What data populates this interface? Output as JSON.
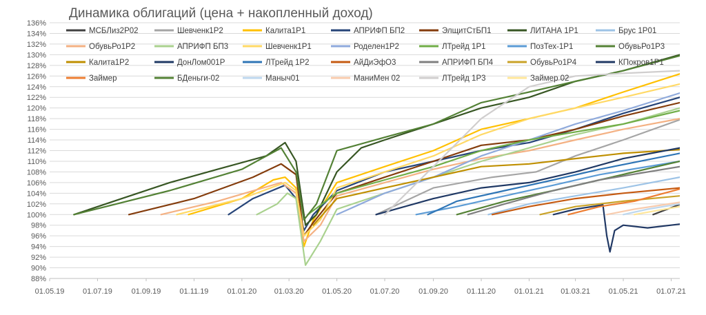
{
  "chart_data": {
    "type": "line",
    "title": "Динамика облигаций (цена + накопленный доход)",
    "xlabel": "",
    "ylabel": "",
    "x_ticks": [
      "01.05.19",
      "01.07.19",
      "01.09.19",
      "01.11.19",
      "01.01.20",
      "01.03.20",
      "01.05.20",
      "01.07.20",
      "01.09.20",
      "01.11.20",
      "01.01.21",
      "01.03.21",
      "01.05.21",
      "01.07.21"
    ],
    "y_ticks": [
      "88%",
      "90%",
      "92%",
      "94%",
      "96%",
      "98%",
      "100%",
      "102%",
      "104%",
      "106%",
      "108%",
      "110%",
      "112%",
      "114%",
      "116%",
      "118%",
      "120%",
      "122%",
      "124%",
      "126%",
      "128%",
      "130%",
      "132%",
      "134%",
      "136%"
    ],
    "x_range": [
      "2019-05-01",
      "2021-07-12"
    ],
    "ylim": [
      88,
      136
    ],
    "grid": "horizontal",
    "legend_position": "top",
    "series": [
      {
        "name": "МСБЛиз2Р02",
        "color": "#404040",
        "points": [
          [
            "2021-06-08",
            100
          ],
          [
            "2021-07-12",
            101.9
          ]
        ]
      },
      {
        "name": "Шевченк1Р2",
        "color": "#a5a5a5",
        "points": [
          [
            "2020-06-20",
            100
          ],
          [
            "2020-09-01",
            105
          ],
          [
            "2020-11-15",
            107
          ],
          [
            "2021-01-10",
            108
          ],
          [
            "2021-03-01",
            111
          ],
          [
            "2021-05-01",
            114
          ],
          [
            "2021-07-12",
            117.8
          ]
        ]
      },
      {
        "name": "Калита1Р1",
        "color": "#ffc000",
        "points": [
          [
            "2019-10-25",
            100
          ],
          [
            "2020-01-01",
            103
          ],
          [
            "2020-02-10",
            106.5
          ],
          [
            "2020-02-25",
            107
          ],
          [
            "2020-03-10",
            105
          ],
          [
            "2020-03-20",
            94
          ],
          [
            "2020-04-01",
            99
          ],
          [
            "2020-05-01",
            106
          ],
          [
            "2020-07-01",
            109
          ],
          [
            "2020-09-01",
            112
          ],
          [
            "2020-11-01",
            116
          ],
          [
            "2021-01-01",
            118
          ],
          [
            "2021-03-01",
            120
          ],
          [
            "2021-05-01",
            123
          ],
          [
            "2021-07-12",
            126.4
          ]
        ]
      },
      {
        "name": "АПРИФП БП2",
        "color": "#264478",
        "points": [
          [
            "2019-12-15",
            100
          ],
          [
            "2020-01-15",
            103
          ],
          [
            "2020-02-25",
            105.5
          ],
          [
            "2020-03-10",
            103
          ],
          [
            "2020-03-20",
            97
          ],
          [
            "2020-04-01",
            100
          ],
          [
            "2020-05-01",
            104.5
          ],
          [
            "2020-07-01",
            108
          ],
          [
            "2020-09-01",
            110
          ],
          [
            "2020-11-01",
            112
          ],
          [
            "2021-01-01",
            113.5
          ],
          [
            "2021-03-01",
            116
          ],
          [
            "2021-05-01",
            119
          ],
          [
            "2021-07-12",
            122
          ]
        ]
      },
      {
        "name": "ЭлщитСтБП1",
        "color": "#843c0c",
        "points": [
          [
            "2019-08-10",
            100
          ],
          [
            "2019-11-01",
            103
          ],
          [
            "2020-01-15",
            107
          ],
          [
            "2020-02-20",
            109.5
          ],
          [
            "2020-03-10",
            107.5
          ],
          [
            "2020-03-20",
            96
          ],
          [
            "2020-04-01",
            98.5
          ],
          [
            "2020-05-01",
            104
          ],
          [
            "2020-07-01",
            107
          ],
          [
            "2020-09-01",
            110
          ],
          [
            "2020-11-01",
            113
          ],
          [
            "2021-01-01",
            114
          ],
          [
            "2021-03-01",
            116
          ],
          [
            "2021-05-01",
            118.5
          ],
          [
            "2021-07-12",
            121
          ]
        ]
      },
      {
        "name": "ЛИТАНА 1Р1",
        "color": "#375623",
        "points": [
          [
            "2019-06-01",
            100
          ],
          [
            "2019-08-01",
            103
          ],
          [
            "2019-10-01",
            106
          ],
          [
            "2019-12-01",
            108.5
          ],
          [
            "2020-02-01",
            111
          ],
          [
            "2020-02-25",
            113.5
          ],
          [
            "2020-03-10",
            110
          ],
          [
            "2020-03-22",
            98
          ],
          [
            "2020-04-05",
            100
          ],
          [
            "2020-05-01",
            108
          ],
          [
            "2020-06-01",
            112.5
          ],
          [
            "2020-07-01",
            114
          ],
          [
            "2020-09-01",
            117
          ],
          [
            "2020-11-01",
            120
          ],
          [
            "2021-01-01",
            122
          ],
          [
            "2021-03-01",
            125
          ],
          [
            "2021-05-01",
            127
          ],
          [
            "2021-07-12",
            130
          ]
        ]
      },
      {
        "name": "Брус 1Р01",
        "color": "#9dc3e6",
        "points": [
          [
            "2020-11-10",
            100
          ],
          [
            "2021-01-01",
            102
          ],
          [
            "2021-03-01",
            103.5
          ],
          [
            "2021-05-01",
            105
          ],
          [
            "2021-07-12",
            107
          ]
        ]
      },
      {
        "name": "ОбувьРо1Р2",
        "color": "#f4b183",
        "points": [
          [
            "2019-09-20",
            100
          ],
          [
            "2019-12-01",
            102.5
          ],
          [
            "2020-02-20",
            106
          ],
          [
            "2020-03-10",
            104
          ],
          [
            "2020-03-20",
            95
          ],
          [
            "2020-04-10",
            98
          ],
          [
            "2020-05-01",
            103.5
          ],
          [
            "2020-07-01",
            106
          ],
          [
            "2020-09-01",
            108.5
          ],
          [
            "2020-11-01",
            110.5
          ],
          [
            "2021-01-01",
            112
          ],
          [
            "2021-03-01",
            114
          ],
          [
            "2021-05-01",
            116
          ],
          [
            "2021-07-12",
            118
          ]
        ]
      },
      {
        "name": "АПРИФП БП3",
        "color": "#a9d18e",
        "points": [
          [
            "2020-01-20",
            100
          ],
          [
            "2020-02-15",
            102
          ],
          [
            "2020-02-28",
            104
          ],
          [
            "2020-03-10",
            103
          ],
          [
            "2020-03-22",
            90.5
          ],
          [
            "2020-04-10",
            95
          ],
          [
            "2020-05-01",
            101
          ],
          [
            "2020-07-01",
            104
          ],
          [
            "2020-09-01",
            107
          ],
          [
            "2020-11-01",
            110
          ],
          [
            "2021-01-01",
            112.5
          ],
          [
            "2021-03-01",
            115
          ],
          [
            "2021-05-01",
            117
          ],
          [
            "2021-07-12",
            120
          ]
        ]
      },
      {
        "name": "Шевченк1Р1",
        "color": "#ffd966",
        "points": [
          [
            "2019-10-10",
            100
          ],
          [
            "2020-01-01",
            103
          ],
          [
            "2020-02-25",
            106
          ],
          [
            "2020-03-10",
            104.5
          ],
          [
            "2020-03-20",
            96
          ],
          [
            "2020-04-10",
            99
          ],
          [
            "2020-05-01",
            105
          ],
          [
            "2020-07-01",
            108
          ],
          [
            "2020-09-01",
            111
          ],
          [
            "2020-11-01",
            115
          ],
          [
            "2021-01-01",
            118
          ],
          [
            "2021-03-01",
            120
          ],
          [
            "2021-05-01",
            122
          ],
          [
            "2021-07-12",
            124.5
          ]
        ]
      },
      {
        "name": "Роделен1Р2",
        "color": "#8faadc",
        "points": [
          [
            "2020-05-01",
            100
          ],
          [
            "2020-07-01",
            104
          ],
          [
            "2020-09-01",
            107
          ],
          [
            "2020-11-01",
            111
          ],
          [
            "2021-01-01",
            114
          ],
          [
            "2021-03-01",
            117
          ],
          [
            "2021-05-01",
            119.5
          ],
          [
            "2021-07-12",
            122.8
          ]
        ]
      },
      {
        "name": "ЛТрейд 1Р1",
        "color": "#70ad47",
        "points": [
          [
            "2020-03-25",
            100
          ],
          [
            "2020-05-01",
            104
          ],
          [
            "2020-07-01",
            106.5
          ],
          [
            "2020-09-01",
            109
          ],
          [
            "2020-11-01",
            112
          ],
          [
            "2021-01-01",
            114
          ],
          [
            "2021-03-01",
            115.5
          ],
          [
            "2021-05-01",
            117
          ],
          [
            "2021-07-12",
            119.5
          ]
        ]
      },
      {
        "name": "ПозТех-1Р1",
        "color": "#5b9bd5",
        "points": [
          [
            "2020-08-10",
            100
          ],
          [
            "2020-10-01",
            101.5
          ],
          [
            "2020-12-01",
            103.5
          ],
          [
            "2021-02-01",
            105.5
          ],
          [
            "2021-04-01",
            107.5
          ],
          [
            "2021-07-12",
            110
          ]
        ]
      },
      {
        "name": "ОбувьРо1Р3",
        "color": "#548235",
        "points": [
          [
            "2020-10-01",
            100
          ],
          [
            "2020-12-01",
            102.5
          ],
          [
            "2021-02-01",
            104.5
          ],
          [
            "2021-04-01",
            106.5
          ],
          [
            "2021-07-12",
            110
          ]
        ]
      },
      {
        "name": "Калита1Р2",
        "color": "#bf8f00",
        "points": [
          [
            "2020-04-01",
            98
          ],
          [
            "2020-05-01",
            103
          ],
          [
            "2020-07-01",
            105
          ],
          [
            "2020-09-01",
            107
          ],
          [
            "2020-11-01",
            109
          ],
          [
            "2021-01-01",
            109.5
          ],
          [
            "2021-03-01",
            110.5
          ],
          [
            "2021-05-01",
            111.5
          ],
          [
            "2021-07-12",
            112.2
          ]
        ]
      },
      {
        "name": "ДонЛом001Р",
        "color": "#1f3864",
        "points": [
          [
            "2020-06-20",
            100
          ],
          [
            "2020-09-01",
            103
          ],
          [
            "2020-11-01",
            105
          ],
          [
            "2021-01-01",
            106
          ],
          [
            "2021-03-01",
            108
          ],
          [
            "2021-05-01",
            110.5
          ],
          [
            "2021-07-12",
            112.5
          ]
        ]
      },
      {
        "name": "ЛТрейд 1Р2",
        "color": "#2e75b6",
        "points": [
          [
            "2020-08-25",
            100
          ],
          [
            "2020-10-01",
            102.5
          ],
          [
            "2020-12-01",
            104.5
          ],
          [
            "2021-02-01",
            106.5
          ],
          [
            "2021-04-01",
            108.5
          ],
          [
            "2021-07-12",
            111.5
          ]
        ]
      },
      {
        "name": "АйДиЭфО3",
        "color": "#c55a11",
        "points": [
          [
            "2020-11-15",
            100
          ],
          [
            "2021-01-01",
            101.5
          ],
          [
            "2021-03-01",
            103
          ],
          [
            "2021-05-01",
            104
          ],
          [
            "2021-07-12",
            105
          ]
        ]
      },
      {
        "name": "АПРИФП БП4",
        "color": "#7f7f7f",
        "points": [
          [
            "2020-10-15",
            100
          ],
          [
            "2020-12-01",
            102
          ],
          [
            "2021-02-01",
            104.5
          ],
          [
            "2021-04-01",
            106.5
          ],
          [
            "2021-07-12",
            109
          ]
        ]
      },
      {
        "name": "ОбувьРо1Р4",
        "color": "#c9a227",
        "points": [
          [
            "2021-01-15",
            100
          ],
          [
            "2021-03-01",
            101.5
          ],
          [
            "2021-05-01",
            102.5
          ],
          [
            "2021-07-12",
            103.5
          ]
        ]
      },
      {
        "name": "КПокров1Р1",
        "color": "#203864",
        "points": [
          [
            "2021-02-01",
            100
          ],
          [
            "2021-03-01",
            101
          ],
          [
            "2021-04-05",
            101.8
          ],
          [
            "2021-04-10",
            96
          ],
          [
            "2021-04-14",
            93
          ],
          [
            "2021-04-20",
            97
          ],
          [
            "2021-05-01",
            98
          ],
          [
            "2021-06-01",
            97.5
          ],
          [
            "2021-07-12",
            98.2
          ]
        ]
      },
      {
        "name": "Займер",
        "color": "#ed7d31",
        "points": [
          [
            "2021-02-20",
            100
          ],
          [
            "2021-04-01",
            101.5
          ],
          [
            "2021-05-15",
            102.5
          ],
          [
            "2021-07-12",
            104.8
          ]
        ]
      },
      {
        "name": "БДеньги-02",
        "color": "#538135",
        "points": [
          [
            "2019-06-01",
            100
          ],
          [
            "2019-10-01",
            104.5
          ],
          [
            "2020-01-01",
            108.5
          ],
          [
            "2020-02-20",
            112.5
          ],
          [
            "2020-03-10",
            108
          ],
          [
            "2020-03-20",
            99
          ],
          [
            "2020-04-05",
            102
          ],
          [
            "2020-05-01",
            112
          ],
          [
            "2020-07-01",
            114.5
          ],
          [
            "2020-09-01",
            117
          ],
          [
            "2020-11-01",
            121
          ],
          [
            "2021-01-01",
            123
          ],
          [
            "2021-03-01",
            125
          ],
          [
            "2021-05-01",
            127
          ],
          [
            "2021-07-12",
            129.8
          ]
        ]
      },
      {
        "name": "Маныч01",
        "color": "#bdd7ee",
        "points": [
          [
            "2021-05-01",
            100
          ],
          [
            "2021-06-01",
            101
          ],
          [
            "2021-07-12",
            102
          ]
        ]
      },
      {
        "name": "МаниМен 02",
        "color": "#f8cbad",
        "points": [
          [
            "2021-04-10",
            100
          ],
          [
            "2021-05-15",
            101
          ],
          [
            "2021-07-12",
            102.3
          ]
        ]
      },
      {
        "name": "ЛТрейд 1Р3",
        "color": "#d0cece",
        "points": [
          [
            "2020-07-01",
            100
          ],
          [
            "2020-09-01",
            109
          ],
          [
            "2020-11-01",
            118
          ],
          [
            "2021-01-01",
            124
          ],
          [
            "2021-03-01",
            126
          ],
          [
            "2021-05-01",
            126.5
          ],
          [
            "2021-07-12",
            127
          ]
        ]
      },
      {
        "name": "Займер 02",
        "color": "#ffe699",
        "points": [
          [
            "2021-05-15",
            100
          ],
          [
            "2021-06-15",
            100.8
          ],
          [
            "2021-07-12",
            101.5
          ]
        ]
      }
    ]
  }
}
